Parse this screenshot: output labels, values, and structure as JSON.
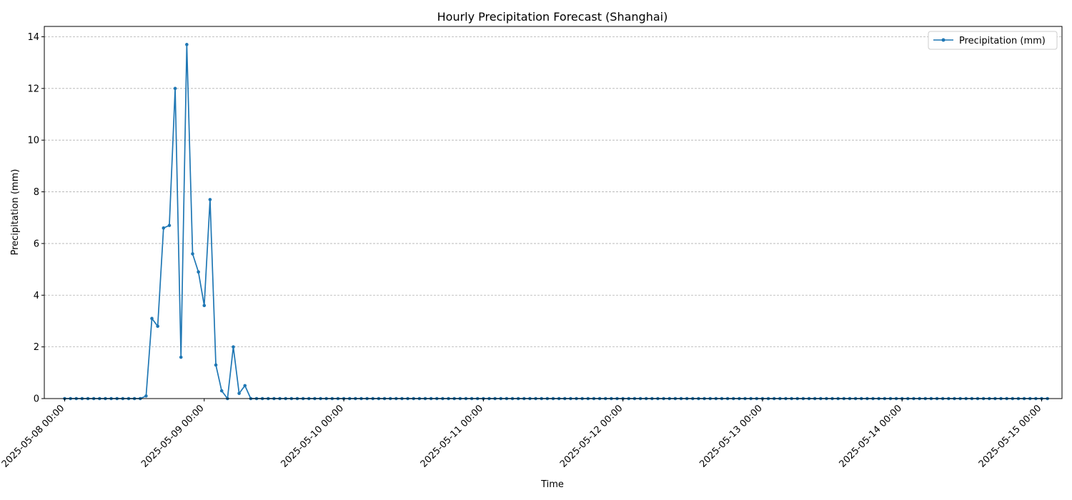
{
  "chart_data": {
    "type": "line",
    "title": "Hourly Precipitation Forecast (Shanghai)",
    "xlabel": "Time",
    "ylabel": "Precipitation (mm)",
    "x_unit": "hours since 2025-05-08 00:00",
    "xlim_hours": [
      -3.5,
      171.5
    ],
    "ylim": [
      0,
      14.4
    ],
    "yticks": [
      0,
      2,
      4,
      6,
      8,
      10,
      12,
      14
    ],
    "xticks": [
      {
        "hour": 0,
        "label": "2025-05-08 00:00"
      },
      {
        "hour": 24,
        "label": "2025-05-09 00:00"
      },
      {
        "hour": 48,
        "label": "2025-05-10 00:00"
      },
      {
        "hour": 72,
        "label": "2025-05-11 00:00"
      },
      {
        "hour": 96,
        "label": "2025-05-12 00:00"
      },
      {
        "hour": 120,
        "label": "2025-05-13 00:00"
      },
      {
        "hour": 144,
        "label": "2025-05-14 00:00"
      },
      {
        "hour": 168,
        "label": "2025-05-15 00:00"
      }
    ],
    "grid": "y-dashed",
    "legend": "top-right",
    "series": [
      {
        "name": "Precipitation (mm)",
        "color": "#1f77b4",
        "values": [
          0,
          0,
          0,
          0,
          0,
          0,
          0,
          0,
          0,
          0,
          0,
          0,
          0,
          0,
          0.1,
          3.1,
          2.8,
          6.6,
          6.7,
          12.0,
          1.6,
          13.7,
          5.6,
          4.9,
          3.6,
          7.7,
          1.3,
          0.3,
          0.0,
          2.0,
          0.2,
          0.5,
          0,
          0,
          0,
          0,
          0,
          0,
          0,
          0,
          0,
          0,
          0,
          0,
          0,
          0,
          0,
          0,
          0,
          0,
          0,
          0,
          0,
          0,
          0,
          0,
          0,
          0,
          0,
          0,
          0,
          0,
          0,
          0,
          0,
          0,
          0,
          0,
          0,
          0,
          0,
          0,
          0,
          0,
          0,
          0,
          0,
          0,
          0,
          0,
          0,
          0,
          0,
          0,
          0,
          0,
          0,
          0,
          0,
          0,
          0,
          0,
          0,
          0,
          0,
          0,
          0,
          0,
          0,
          0,
          0,
          0,
          0,
          0,
          0,
          0,
          0,
          0,
          0,
          0,
          0,
          0,
          0,
          0,
          0,
          0,
          0,
          0,
          0,
          0,
          0,
          0,
          0,
          0,
          0,
          0,
          0,
          0,
          0,
          0,
          0,
          0,
          0,
          0,
          0,
          0,
          0,
          0,
          0,
          0,
          0,
          0,
          0,
          0,
          0,
          0,
          0,
          0,
          0,
          0,
          0,
          0,
          0,
          0,
          0,
          0,
          0,
          0,
          0,
          0,
          0,
          0,
          0,
          0,
          0,
          0,
          0,
          0,
          0,
          0
        ]
      }
    ]
  }
}
